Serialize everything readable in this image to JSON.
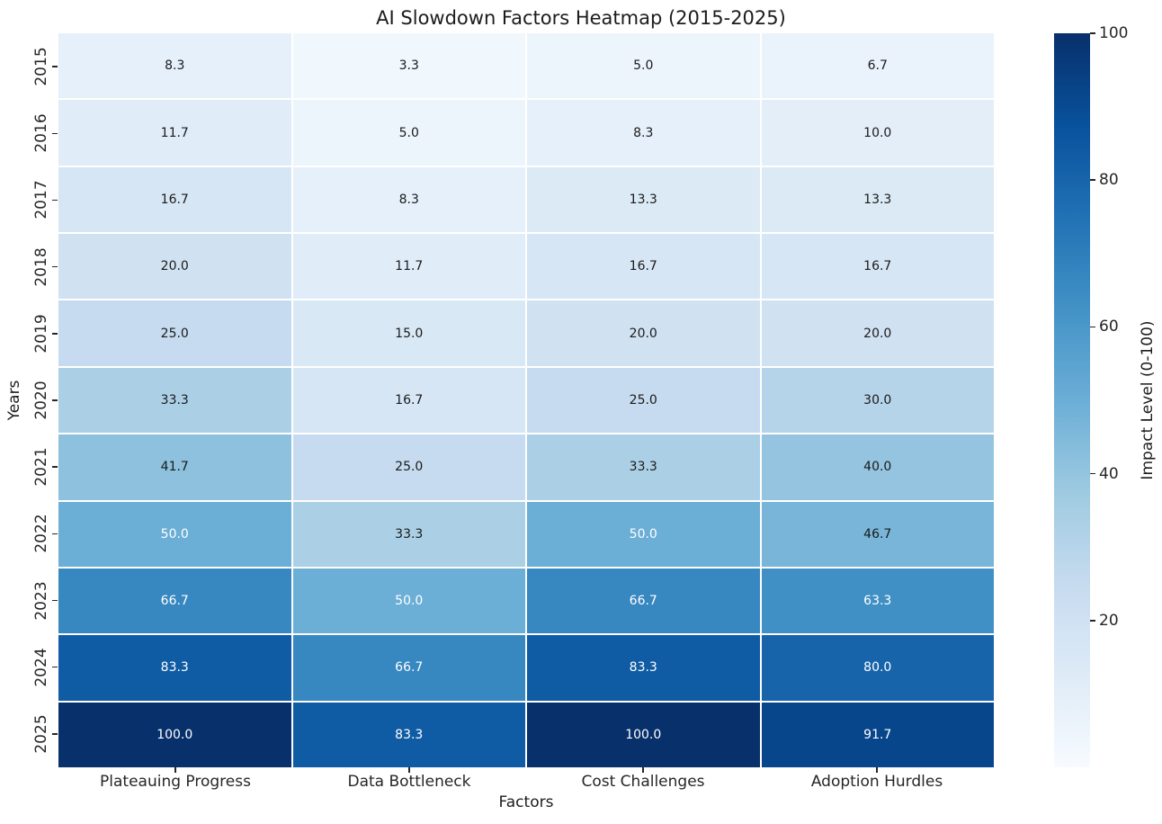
{
  "chart_data": {
    "type": "heatmap",
    "title": "AI Slowdown Factors Heatmap (2015-2025)",
    "xlabel": "Factors",
    "ylabel": "Years",
    "columns": [
      "Plateauing Progress",
      "Data Bottleneck",
      "Cost Challenges",
      "Adoption Hurdles"
    ],
    "rows": [
      "2015",
      "2016",
      "2017",
      "2018",
      "2019",
      "2020",
      "2021",
      "2022",
      "2023",
      "2024",
      "2025"
    ],
    "values": [
      [
        8.3,
        3.3,
        5.0,
        6.7
      ],
      [
        11.7,
        5.0,
        8.3,
        10.0
      ],
      [
        16.7,
        8.3,
        13.3,
        13.3
      ],
      [
        20.0,
        11.7,
        16.7,
        16.7
      ],
      [
        25.0,
        15.0,
        20.0,
        20.0
      ],
      [
        33.3,
        16.7,
        25.0,
        30.0
      ],
      [
        41.7,
        25.0,
        33.3,
        40.0
      ],
      [
        50.0,
        33.3,
        50.0,
        46.7
      ],
      [
        66.7,
        50.0,
        66.7,
        63.3
      ],
      [
        83.3,
        66.7,
        83.3,
        80.0
      ],
      [
        100.0,
        83.3,
        100.0,
        91.7
      ]
    ],
    "value_range": [
      0,
      100
    ],
    "grid_on": false,
    "cell_divider_color": "#ffffff",
    "colormap": "Blues",
    "colormap_stops": [
      "#f7fbff",
      "#deebf7",
      "#c6dbef",
      "#9ecae1",
      "#6baed6",
      "#4292c6",
      "#2171b5",
      "#08519c",
      "#08306b"
    ],
    "annotation_decimals": 1,
    "annotation_dark_color": "#1a1a1a",
    "annotation_light_color": "#ffffff",
    "colorbar": {
      "label": "Impact Level (0-100)",
      "ticks": [
        20,
        40,
        60,
        80,
        100
      ],
      "position": "right"
    }
  }
}
